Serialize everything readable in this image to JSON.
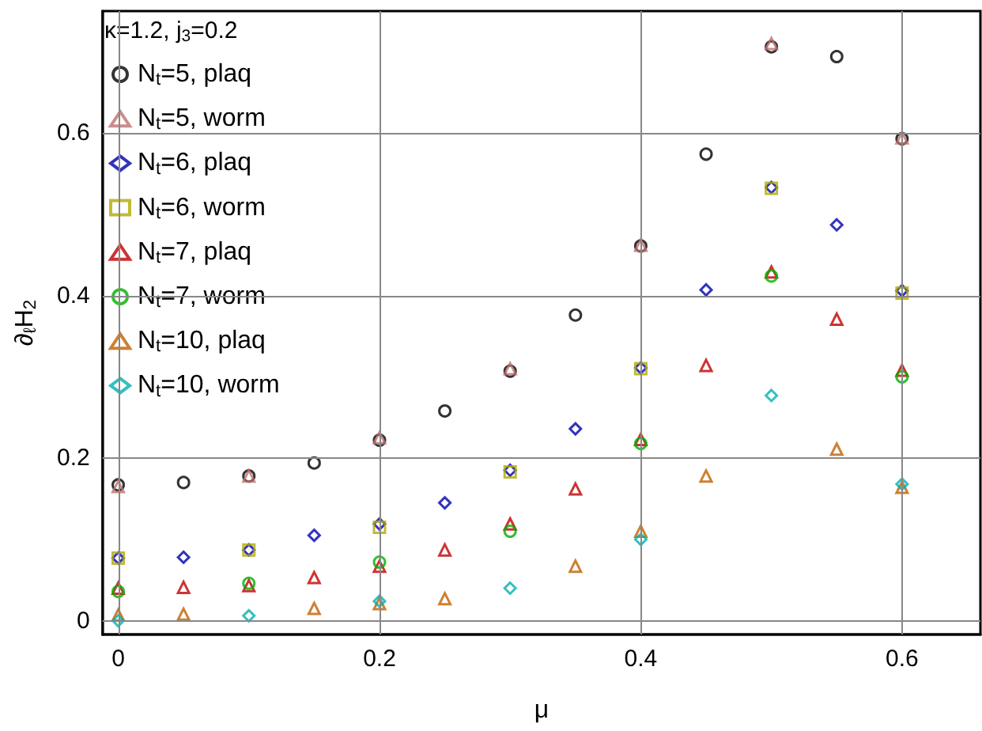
{
  "chart_data": {
    "type": "scatter",
    "xlabel": "μ",
    "ylabel": "∂$_{ℓ}$H$_{2}$",
    "legend_title": "κ=1.2, j$_{3}$=0.2",
    "xlim": [
      -0.012,
      0.66
    ],
    "ylim": [
      -0.017,
      0.75
    ],
    "xticks": [
      0,
      0.2,
      0.4,
      0.6
    ],
    "yticks": [
      0,
      0.2,
      0.4,
      0.6
    ],
    "grid": true,
    "legend": "top left",
    "series": [
      {
        "name": "N$_{t}$=5, plaq",
        "color": "#000000",
        "marker": "circle",
        "x": [
          0,
          0.05,
          0.1,
          0.15,
          0.2,
          0.25,
          0.3,
          0.35,
          0.4,
          0.45,
          0.5,
          0.55,
          0.6
        ],
        "values": [
          0.167,
          0.17,
          0.178,
          0.194,
          0.222,
          0.258,
          0.307,
          0.376,
          0.461,
          0.574,
          0.706,
          0.694,
          0.593
        ]
      },
      {
        "name": "N$_{t}$=5, worm",
        "color": "#c07070",
        "marker": "triangle",
        "x": [
          0,
          0.1,
          0.2,
          0.3,
          0.4,
          0.5,
          0.6
        ],
        "values": [
          0.165,
          0.178,
          0.225,
          0.31,
          0.462,
          0.71,
          0.594
        ]
      },
      {
        "name": "N$_{t}$=6, plaq",
        "color": "#0000b0",
        "marker": "diamond",
        "x": [
          0,
          0.05,
          0.1,
          0.15,
          0.2,
          0.25,
          0.3,
          0.35,
          0.4,
          0.45,
          0.5,
          0.55,
          0.6
        ],
        "values": [
          0.077,
          0.078,
          0.087,
          0.105,
          0.119,
          0.145,
          0.185,
          0.236,
          0.311,
          0.407,
          0.533,
          0.487,
          0.406
        ]
      },
      {
        "name": "N$_{t}$=6, worm",
        "color": "#b0aa00",
        "marker": "square",
        "x": [
          0,
          0.1,
          0.2,
          0.3,
          0.4,
          0.5,
          0.6
        ],
        "values": [
          0.077,
          0.087,
          0.115,
          0.183,
          0.31,
          0.532,
          0.403
        ]
      },
      {
        "name": "N$_{t}$=7, plaq",
        "color": "#c00000",
        "marker": "triangle",
        "x": [
          0,
          0.05,
          0.1,
          0.15,
          0.2,
          0.25,
          0.3,
          0.35,
          0.4,
          0.45,
          0.5,
          0.55,
          0.6
        ],
        "values": [
          0.04,
          0.041,
          0.043,
          0.053,
          0.067,
          0.087,
          0.119,
          0.162,
          0.223,
          0.314,
          0.429,
          0.371,
          0.308
        ]
      },
      {
        "name": "N$_{t}$=7, worm",
        "color": "#00b000",
        "marker": "circle",
        "x": [
          0,
          0.1,
          0.2,
          0.3,
          0.4,
          0.5,
          0.6
        ],
        "values": [
          0.036,
          0.046,
          0.072,
          0.11,
          0.218,
          0.424,
          0.3
        ]
      },
      {
        "name": "N$_{t}$=10, plaq",
        "color": "#c06000",
        "marker": "triangle",
        "x": [
          0,
          0.05,
          0.1,
          0.15,
          0.2,
          0.25,
          0.3,
          0.35,
          0.4,
          0.45,
          0.5,
          0.55,
          0.6
        ],
        "values": [
          0.007,
          0.008,
          null,
          0.015,
          0.021,
          0.027,
          null,
          0.067,
          0.11,
          0.178,
          null,
          0.211,
          0.164
        ]
      },
      {
        "name": "N$_{t}$=10, worm",
        "color": "#00b0b0",
        "marker": "diamond",
        "x": [
          0,
          0.1,
          0.2,
          0.3,
          0.4,
          0.5,
          0.6
        ],
        "values": [
          0.0,
          0.006,
          0.024,
          0.04,
          0.1,
          0.277,
          0.168
        ]
      }
    ]
  }
}
